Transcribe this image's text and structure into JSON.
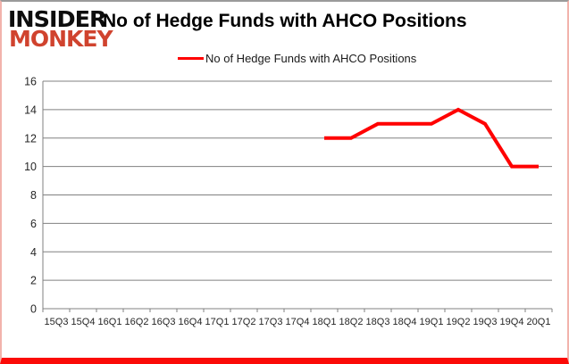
{
  "brand": {
    "line1": "INSIDER",
    "line2": "MONKEY",
    "color_line1": "#0d0d0d",
    "color_line2": "#d0432e"
  },
  "header": {
    "title": "No of Hedge Funds with AHCO Positions"
  },
  "legend": {
    "label": "No of Hedge Funds with AHCO Positions",
    "line_color": "#ff0000"
  },
  "colors": {
    "series_red": "#ff0000",
    "grid_gray": "#808080",
    "tick_label": "#262626",
    "frame_bottom_red": "#fb0a07"
  },
  "chart_data": {
    "type": "line",
    "title": "No of Hedge Funds with AHCO Positions",
    "xlabel": "",
    "ylabel": "",
    "categories": [
      "15Q3",
      "15Q4",
      "16Q1",
      "16Q2",
      "16Q3",
      "16Q4",
      "17Q1",
      "17Q2",
      "17Q3",
      "17Q4",
      "18Q1",
      "18Q2",
      "18Q3",
      "18Q4",
      "19Q1",
      "19Q2",
      "19Q3",
      "19Q4",
      "20Q1"
    ],
    "series": [
      {
        "name": "No of Hedge Funds with AHCO Positions",
        "color": "#ff0000",
        "values": [
          null,
          null,
          null,
          null,
          null,
          null,
          null,
          null,
          null,
          null,
          12,
          12,
          13,
          13,
          13,
          14,
          13,
          10,
          10
        ]
      }
    ],
    "ylim": [
      0,
      16
    ],
    "ytick_step": 2,
    "yticks": [
      0,
      2,
      4,
      6,
      8,
      10,
      12,
      14,
      16
    ],
    "grid": true,
    "legend_position": "top-center"
  }
}
